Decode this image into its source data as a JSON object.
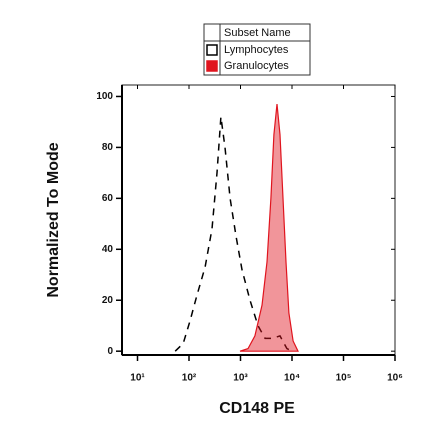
{
  "chart_data": {
    "type": "histogram-overlay",
    "x_label": "CD148 PE",
    "y_label": "Normalized To Mode",
    "legend_title": "Subset Name",
    "xscale": "log",
    "xlim": [
      5,
      1000000
    ],
    "xticks": [
      {
        "value": 10,
        "label": "10¹"
      },
      {
        "value": 100,
        "label": "10²"
      },
      {
        "value": 1000,
        "label": "10³"
      },
      {
        "value": 10000,
        "label": "10⁴"
      },
      {
        "value": 100000,
        "label": "10⁵"
      },
      {
        "value": 1000000,
        "label": "10⁶"
      }
    ],
    "ylim": [
      -1.5,
      104.5
    ],
    "yticks": [
      0,
      20,
      40,
      60,
      80,
      100
    ],
    "series": [
      {
        "name": "Lymphocytes",
        "color": "#000000",
        "style": "dashed",
        "filled": false,
        "x": [
          54,
          77,
          105,
          143,
          205,
          280,
          350,
          417,
          500,
          627,
          820,
          1070,
          1530,
          2190,
          3000,
          4100,
          5860,
          7960,
          10000
        ],
        "values": [
          0,
          3,
          12,
          22,
          33,
          48,
          70,
          92,
          80,
          60,
          45,
          32,
          20,
          10,
          5,
          5,
          6,
          1,
          0
        ]
      },
      {
        "name": "Granulocytes",
        "color": "#e0141e",
        "style": "solid",
        "filled": true,
        "x": [
          980,
          1400,
          1900,
          2620,
          3270,
          3900,
          4450,
          5120,
          5860,
          6700,
          7650,
          8700,
          10500,
          13100
        ],
        "values": [
          0,
          1,
          6,
          18,
          35,
          60,
          85,
          97,
          85,
          60,
          35,
          15,
          4,
          0
        ]
      }
    ]
  }
}
